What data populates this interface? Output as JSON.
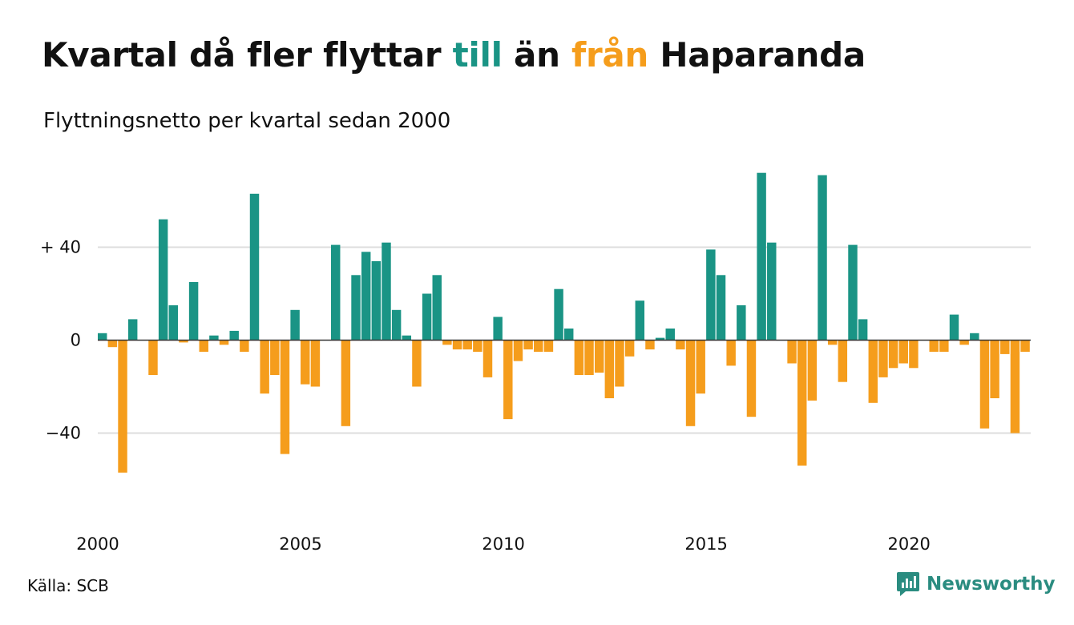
{
  "title": {
    "part1": "Kvartal då fler flyttar ",
    "till": "till",
    "part2": " än ",
    "fran": "från",
    "part3": " Haparanda"
  },
  "subtitle": "Flyttningsnetto per kvartal sedan 2000",
  "source": "Källa: SCB",
  "brand": {
    "name": "Newsworthy",
    "icon": "newsworthy-chart-bubble-icon"
  },
  "colors": {
    "positive": "#1a9485",
    "negative": "#f59d1c",
    "text": "#111111",
    "grid": "#dddddd",
    "zero_line": "#333333",
    "brand": "#2a8c80"
  },
  "chart_data": {
    "type": "bar",
    "title": "Kvartal då fler flyttar till än från Haparanda",
    "subtitle": "Flyttningsnetto per kvartal sedan 2000",
    "xlabel": "",
    "ylabel": "",
    "x_start": "2000 Q1",
    "x_frequency": "quarterly",
    "x_ticks": [
      "2000",
      "2005",
      "2010",
      "2015",
      "2020"
    ],
    "y_ticks": [
      {
        "value": 40,
        "label": "+ 40"
      },
      {
        "value": 0,
        "label": "0"
      },
      {
        "value": -40,
        "label": "−40"
      }
    ],
    "ylim": [
      -75,
      75
    ],
    "grid": true,
    "legend": "none",
    "values": [
      3,
      -3,
      -57,
      9,
      0,
      -15,
      52,
      15,
      -1,
      25,
      -5,
      2,
      -2,
      4,
      -5,
      63,
      -23,
      -15,
      -49,
      13,
      -19,
      -20,
      0,
      41,
      -37,
      28,
      38,
      34,
      42,
      13,
      2,
      -20,
      20,
      28,
      -2,
      -4,
      -4,
      -5,
      -16,
      10,
      -34,
      -9,
      -4,
      -5,
      -5,
      22,
      5,
      -15,
      -15,
      -14,
      -25,
      -20,
      -7,
      17,
      -4,
      1,
      5,
      -4,
      -37,
      -23,
      39,
      28,
      -11,
      15,
      -33,
      72,
      42,
      0,
      -10,
      -54,
      -26,
      71,
      -2,
      -18,
      41,
      9,
      -27,
      -16,
      -12,
      -10,
      -12,
      0,
      -5,
      -5,
      11,
      -2,
      3,
      -38,
      -25,
      -6,
      -40,
      -5
    ]
  }
}
